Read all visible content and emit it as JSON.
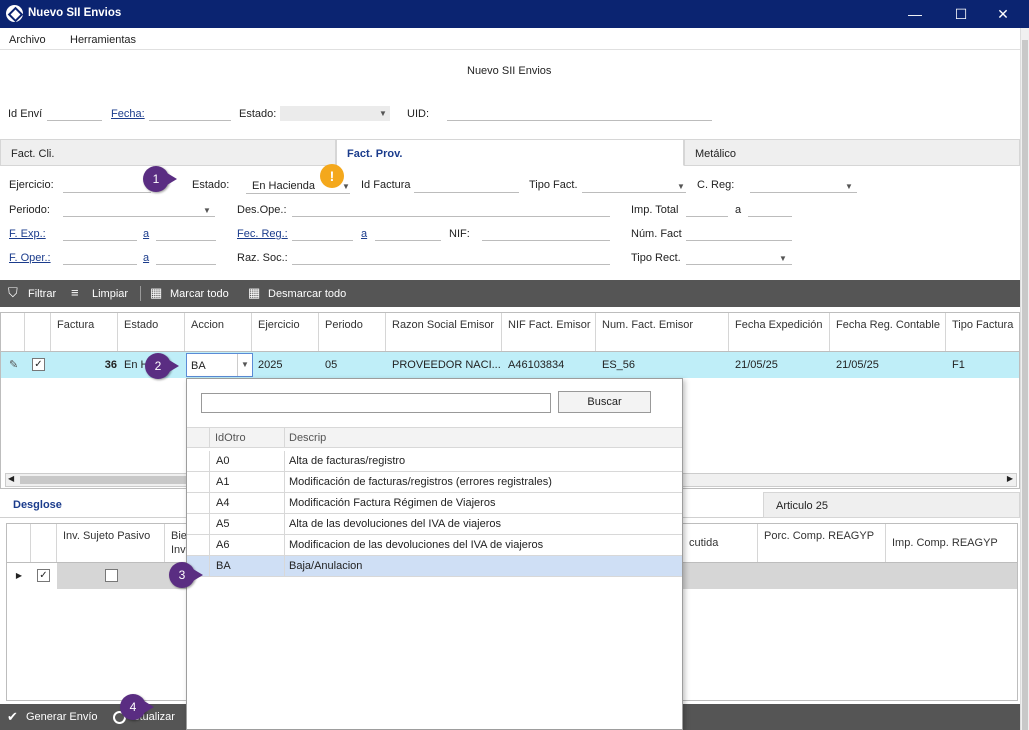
{
  "window": {
    "title": "Nuevo SII Envios",
    "minimize": "—",
    "maximize": "☐",
    "close": "✕"
  },
  "menu": {
    "items": [
      "Archivo",
      "Herramientas"
    ]
  },
  "form_title": "Nuevo SII Envios",
  "header_fields": {
    "id_envio": "Id Enví",
    "fecha": "Fecha:",
    "estado": "Estado:",
    "uid": "UID:"
  },
  "tabs": [
    "Fact. Cli.",
    "Fact. Prov.",
    "Metálico"
  ],
  "filters": {
    "ejercicio": "Ejercicio:",
    "estado": "Estado:",
    "estado_value": "En Hacienda",
    "id_factura": "Id Factura",
    "tipo_fact": "Tipo Fact.",
    "c_reg": "C. Reg:",
    "periodo": "Periodo:",
    "des_ope": "Des.Ope.:",
    "imp_total": "Imp. Total",
    "a": "a",
    "f_exp": "F. Exp.:",
    "fec_reg": "Fec. Reg.:",
    "nif": "NIF:",
    "num_fact": "Núm. Fact",
    "f_oper": "F. Oper.:",
    "raz_soc": "Raz. Soc.:",
    "tipo_rect": "Tipo Rect."
  },
  "toolbar": {
    "filtrar": "Filtrar",
    "limpiar": "Limpiar",
    "marcar": "Marcar todo",
    "desmarcar": "Desmarcar todo"
  },
  "grid": {
    "headers": [
      "Factura",
      "Estado",
      "Accion",
      "Ejercicio",
      "Periodo",
      "Razon Social Emisor",
      "NIF Fact. Emisor",
      "Num. Fact. Emisor",
      "Fecha Expedición",
      "Fecha Reg. Contable",
      "Tipo Factura"
    ],
    "row": {
      "factura": "36",
      "estado": "En H",
      "accion": "BA",
      "ejercicio": "2025",
      "periodo": "05",
      "razon": "PROVEEDOR NACI...",
      "nif": "A46103834",
      "num": "ES_56",
      "fecha_exp": "21/05/25",
      "fecha_reg": "21/05/25",
      "tipo": "F1"
    }
  },
  "lower_tabs": {
    "desglose": "Desglose",
    "articulo": "Articulo 25"
  },
  "lower_grid": {
    "headers": [
      "Inv. Sujeto Pasivo",
      "Bien Inve",
      "cutida",
      "Porc. Comp. REAGYP",
      "Imp. Comp. REAGYP"
    ]
  },
  "popup": {
    "search_button": "Buscar",
    "col_id": "IdOtro",
    "col_desc": "Descrip",
    "rows": [
      {
        "id": "A0",
        "desc": "Alta de facturas/registro"
      },
      {
        "id": "A1",
        "desc": "Modificación de facturas/registros (errores registrales)"
      },
      {
        "id": "A4",
        "desc": "Modificación Factura Régimen de Viajeros"
      },
      {
        "id": "A5",
        "desc": "Alta de las devoluciones del IVA de viajeros"
      },
      {
        "id": "A6",
        "desc": "Modificacion de las devoluciones del IVA de viajeros"
      },
      {
        "id": "BA",
        "desc": "Baja/Anulacion"
      }
    ]
  },
  "bottom": {
    "generar": "Generar Envío",
    "actualizar": "ctualizar"
  },
  "badges": [
    "1",
    "2",
    "3",
    "4"
  ],
  "warning_icon": "!"
}
